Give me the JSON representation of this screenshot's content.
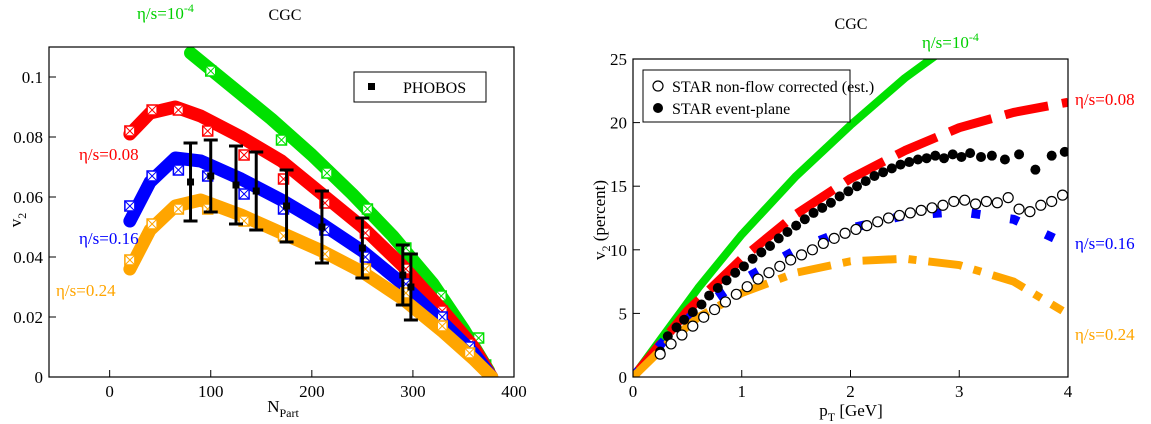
{
  "chart_data": [
    {
      "type": "line",
      "title": "CGC",
      "xlabel": "N",
      "xlabel_sub": "Part",
      "ylabel": "v",
      "ylabel_sub": "2",
      "xlim": [
        -60,
        400
      ],
      "ylim": [
        0,
        0.11
      ],
      "xticks": [
        0,
        100,
        200,
        300,
        400
      ],
      "yticks": [
        0,
        0.02,
        0.04,
        0.06,
        0.08,
        0.1
      ],
      "xtick_labels": [
        "0",
        "100",
        "200",
        "300",
        "400"
      ],
      "ytick_labels": [
        "0",
        "0.02",
        "0.04",
        "0.06",
        "0.08",
        "0.1"
      ],
      "legend": {
        "position": "top-right",
        "entries": [
          "PHOBOS"
        ]
      },
      "series": [
        {
          "name": "η/s=10",
          "sup": "-4",
          "color": "#00e000",
          "style": "band",
          "x": [
            80,
            120,
            160,
            200,
            240,
            280,
            320,
            350,
            375
          ],
          "y": [
            0.108,
            0.097,
            0.086,
            0.074,
            0.061,
            0.047,
            0.031,
            0.016,
            0.002
          ],
          "markers_x": [
            100,
            170,
            215,
            255,
            293,
            328,
            365,
            372
          ],
          "markers_y": [
            0.102,
            0.079,
            0.068,
            0.056,
            0.043,
            0.027,
            0.013,
            0.004
          ]
        },
        {
          "name": "η/s=0.08",
          "color": "#ff0000",
          "style": "band",
          "x": [
            20,
            40,
            65,
            90,
            130,
            170,
            210,
            250,
            290,
            330,
            360,
            378
          ],
          "y": [
            0.081,
            0.088,
            0.09,
            0.087,
            0.08,
            0.072,
            0.061,
            0.05,
            0.037,
            0.022,
            0.01,
            0.0
          ],
          "markers_x": [
            20,
            42,
            68,
            97,
            133,
            172,
            213,
            253,
            293,
            329,
            356
          ],
          "markers_y": [
            0.082,
            0.089,
            0.089,
            0.082,
            0.074,
            0.066,
            0.058,
            0.048,
            0.036,
            0.022,
            0.011
          ]
        },
        {
          "name": "η/s=0.16",
          "color": "#0000ff",
          "style": "band",
          "x": [
            20,
            40,
            65,
            90,
            130,
            170,
            210,
            250,
            290,
            330,
            360,
            378
          ],
          "y": [
            0.052,
            0.065,
            0.073,
            0.072,
            0.066,
            0.059,
            0.051,
            0.042,
            0.031,
            0.018,
            0.008,
            0.0
          ],
          "markers_x": [
            20,
            42,
            68,
            97,
            133,
            172,
            213,
            253,
            293,
            329,
            356
          ],
          "markers_y": [
            0.057,
            0.067,
            0.069,
            0.067,
            0.061,
            0.056,
            0.049,
            0.04,
            0.031,
            0.02,
            0.01
          ]
        },
        {
          "name": "η/s=0.24",
          "color": "#ffa500",
          "style": "band",
          "x": [
            20,
            40,
            65,
            90,
            130,
            170,
            210,
            250,
            290,
            330,
            360,
            378
          ],
          "y": [
            0.036,
            0.049,
            0.057,
            0.059,
            0.054,
            0.048,
            0.042,
            0.035,
            0.026,
            0.015,
            0.006,
            0.0
          ],
          "markers_x": [
            20,
            42,
            68,
            97,
            133,
            172,
            213,
            253,
            293,
            329,
            356
          ],
          "markers_y": [
            0.039,
            0.051,
            0.056,
            0.056,
            0.052,
            0.047,
            0.041,
            0.036,
            0.028,
            0.017,
            0.008
          ]
        },
        {
          "name": "PHOBOS",
          "color": "#000000",
          "style": "errorbars",
          "x": [
            80,
            100,
            125,
            145,
            175,
            210,
            250,
            290,
            298
          ],
          "y": [
            0.065,
            0.067,
            0.064,
            0.062,
            0.057,
            0.05,
            0.043,
            0.034,
            0.03
          ],
          "err": [
            0.013,
            0.012,
            0.013,
            0.013,
            0.012,
            0.012,
            0.01,
            0.01,
            0.011
          ]
        }
      ]
    },
    {
      "type": "line",
      "title": "CGC",
      "xlabel": "p",
      "xlabel_sub": "T",
      "xlabel_rest": " [GeV]",
      "ylabel": "v",
      "ylabel_sub": "2",
      "ylabel_rest": " (percent)",
      "xlim": [
        0,
        4
      ],
      "ylim": [
        0,
        25
      ],
      "xticks": [
        0,
        1,
        2,
        3,
        4
      ],
      "yticks": [
        0,
        5,
        10,
        15,
        20,
        25
      ],
      "xtick_labels": [
        "0",
        "1",
        "2",
        "3",
        "4"
      ],
      "ytick_labels": [
        "0",
        "5",
        "10",
        "15",
        "20",
        "25"
      ],
      "legend": {
        "position": "top-left",
        "entries": [
          "STAR non-flow corrected (est.)",
          "STAR event-plane"
        ]
      },
      "series": [
        {
          "name": "η/s=10",
          "sup": "-4",
          "color": "#00e000",
          "style": "solid",
          "x": [
            0,
            0.3,
            0.6,
            1.0,
            1.5,
            2.0,
            2.5,
            2.9
          ],
          "y": [
            0,
            3.5,
            7.0,
            11.2,
            15.8,
            19.8,
            23.5,
            26.0
          ]
        },
        {
          "name": "η/s=0.08",
          "color": "#ff0000",
          "style": "longdash",
          "x": [
            0,
            0.5,
            1.0,
            1.5,
            2.0,
            2.5,
            3.0,
            3.5,
            4.0
          ],
          "y": [
            0,
            5.2,
            9.3,
            12.8,
            15.6,
            17.8,
            19.6,
            20.8,
            21.6
          ]
        },
        {
          "name": "η/s=0.16",
          "color": "#0000ff",
          "style": "dot",
          "x": [
            0,
            0.3,
            0.6,
            1.0,
            1.5,
            2.0,
            2.5,
            3.0,
            3.5,
            3.9
          ],
          "y": [
            0,
            3.0,
            5.3,
            7.6,
            10.0,
            11.7,
            12.7,
            13.0,
            12.4,
            10.8
          ]
        },
        {
          "name": "η/s=0.24",
          "color": "#ffa500",
          "style": "dashdot",
          "x": [
            0,
            0.3,
            0.6,
            1.0,
            1.5,
            2.0,
            2.5,
            3.0,
            3.5,
            3.95
          ],
          "y": [
            0,
            2.5,
            4.7,
            6.6,
            8.2,
            9.1,
            9.3,
            8.8,
            7.5,
            5.2
          ]
        },
        {
          "name": "STAR event-plane",
          "color": "#000000",
          "style": "filled-circle",
          "x": [
            0.25,
            0.32,
            0.4,
            0.47,
            0.55,
            0.63,
            0.7,
            0.78,
            0.86,
            0.94,
            1.02,
            1.1,
            1.18,
            1.26,
            1.34,
            1.42,
            1.5,
            1.58,
            1.66,
            1.74,
            1.82,
            1.9,
            1.98,
            2.06,
            2.14,
            2.22,
            2.3,
            2.38,
            2.46,
            2.54,
            2.62,
            2.7,
            2.78,
            2.86,
            2.94,
            3.02,
            3.1,
            3.2,
            3.3,
            3.42,
            3.55,
            3.7,
            3.85,
            3.97
          ],
          "y": [
            2.0,
            3.2,
            3.9,
            4.5,
            5.1,
            5.7,
            6.4,
            7.0,
            7.6,
            8.2,
            8.7,
            9.3,
            9.8,
            10.3,
            10.9,
            11.4,
            11.9,
            12.4,
            12.9,
            13.3,
            13.7,
            14.2,
            14.6,
            15.0,
            15.4,
            15.8,
            16.1,
            16.4,
            16.7,
            16.9,
            17.1,
            17.2,
            17.4,
            17.2,
            17.5,
            17.3,
            17.6,
            17.3,
            17.4,
            17.1,
            17.5,
            16.3,
            17.4,
            17.7
          ]
        },
        {
          "name": "STAR non-flow corrected (est.)",
          "color": "#000000",
          "style": "open-circle",
          "x": [
            0.25,
            0.35,
            0.45,
            0.55,
            0.65,
            0.75,
            0.85,
            0.95,
            1.05,
            1.15,
            1.25,
            1.35,
            1.45,
            1.55,
            1.65,
            1.75,
            1.85,
            1.95,
            2.05,
            2.15,
            2.25,
            2.35,
            2.45,
            2.55,
            2.65,
            2.75,
            2.85,
            2.95,
            3.05,
            3.15,
            3.25,
            3.35,
            3.45,
            3.55,
            3.65,
            3.75,
            3.85,
            3.95
          ],
          "y": [
            1.8,
            2.6,
            3.3,
            4.0,
            4.7,
            5.3,
            5.9,
            6.5,
            7.1,
            7.7,
            8.2,
            8.7,
            9.2,
            9.6,
            10.0,
            10.5,
            10.9,
            11.3,
            11.6,
            11.9,
            12.2,
            12.5,
            12.7,
            12.9,
            13.1,
            13.3,
            13.5,
            13.8,
            13.9,
            13.6,
            13.8,
            13.7,
            14.1,
            13.2,
            13.0,
            13.5,
            13.8,
            14.3
          ]
        }
      ]
    }
  ]
}
